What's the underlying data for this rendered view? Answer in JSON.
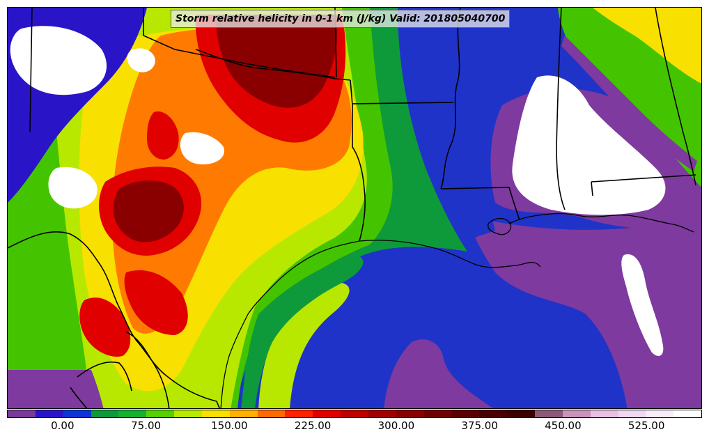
{
  "title": "Storm relative helicity in 0-1 km (J/kg) Valid: 201805040700",
  "colorbar": {
    "colors": [
      "#7a3a9a",
      "#2a14c8",
      "#0e34d6",
      "#0e9a3a",
      "#16b030",
      "#56d000",
      "#b8e800",
      "#f8e000",
      "#ffb000",
      "#ff6a00",
      "#ff2000",
      "#e00000",
      "#c00000",
      "#a00000",
      "#880000",
      "#700000",
      "#5a0000",
      "#4a0000",
      "#3c0000",
      "#8c5a78",
      "#c894bc",
      "#e8c0e4",
      "#f0d8f0",
      "#f8ecf8",
      "#ffffff"
    ],
    "tick_labels": [
      "0.00",
      "75.00",
      "150.00",
      "225.00",
      "300.00",
      "375.00",
      "450.00",
      "525.00"
    ]
  },
  "colors": {
    "ocean_low": "#1f33c8",
    "purple": "#7e3a9e",
    "white": "#ffffff",
    "dark_green": "#0e9a3a",
    "green": "#44c400",
    "yellow_green": "#b8e800",
    "yellow": "#f8e000",
    "orange": "#ff7a00",
    "red": "#e00000",
    "dark_red": "#8a0000",
    "boundary": "#000000"
  }
}
